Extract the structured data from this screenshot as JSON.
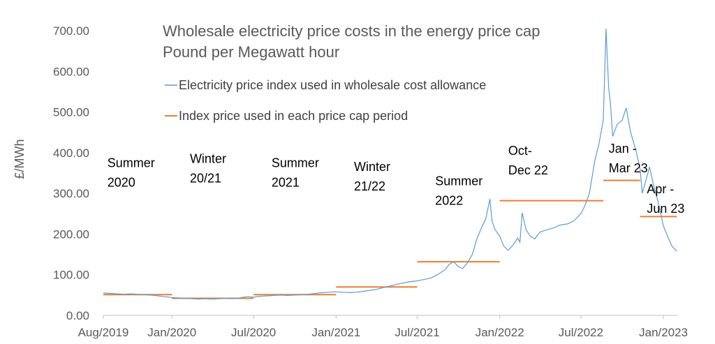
{
  "chart_data": {
    "type": "line",
    "title": "Wholesale electricity price costs in the energy price cap",
    "subtitle": "Pound per Megawatt hour",
    "ylabel": "£/MWh",
    "xlabel": "",
    "ylim": [
      0,
      700
    ],
    "xlim": [
      "2019-08-01",
      "2023-02-01"
    ],
    "grid": false,
    "legend_position": "top-left",
    "y_ticks": [
      "0.00",
      "100.00",
      "200.00",
      "300.00",
      "400.00",
      "500.00",
      "600.00",
      "700.00"
    ],
    "x_ticks": [
      {
        "date": "2019-08-01",
        "label": "Aug/2019"
      },
      {
        "date": "2020-01-01",
        "label": "Jan/2020"
      },
      {
        "date": "2020-07-01",
        "label": "Jul/2020"
      },
      {
        "date": "2021-01-01",
        "label": "Jan/2021"
      },
      {
        "date": "2021-07-01",
        "label": "Jul/2021"
      },
      {
        "date": "2022-01-01",
        "label": "Jan/2022"
      },
      {
        "date": "2022-07-01",
        "label": "Jul/2022"
      },
      {
        "date": "2023-01-01",
        "label": "Jan/2023"
      }
    ],
    "series": [
      {
        "name": "Electricity price index used in wholesale cost allowance",
        "kind": "line",
        "color": "#5b9bd5",
        "points": [
          [
            "2019-08-01",
            55
          ],
          [
            "2019-08-15",
            54
          ],
          [
            "2019-09-01",
            53
          ],
          [
            "2019-09-15",
            52
          ],
          [
            "2019-10-01",
            53
          ],
          [
            "2019-10-15",
            52
          ],
          [
            "2019-11-01",
            51
          ],
          [
            "2019-11-15",
            50
          ],
          [
            "2019-12-01",
            48
          ],
          [
            "2019-12-15",
            46
          ],
          [
            "2020-01-01",
            44
          ],
          [
            "2020-01-15",
            43
          ],
          [
            "2020-02-01",
            42
          ],
          [
            "2020-02-15",
            41
          ],
          [
            "2020-03-01",
            40
          ],
          [
            "2020-03-15",
            41
          ],
          [
            "2020-04-01",
            40
          ],
          [
            "2020-04-15",
            41
          ],
          [
            "2020-05-01",
            42
          ],
          [
            "2020-05-15",
            41
          ],
          [
            "2020-06-01",
            43
          ],
          [
            "2020-06-15",
            46
          ],
          [
            "2020-07-01",
            45
          ],
          [
            "2020-07-15",
            47
          ],
          [
            "2020-08-01",
            48
          ],
          [
            "2020-08-15",
            49
          ],
          [
            "2020-09-01",
            50
          ],
          [
            "2020-09-15",
            49
          ],
          [
            "2020-10-01",
            50
          ],
          [
            "2020-10-15",
            51
          ],
          [
            "2020-11-01",
            52
          ],
          [
            "2020-11-15",
            54
          ],
          [
            "2020-12-01",
            56
          ],
          [
            "2020-12-15",
            57
          ],
          [
            "2021-01-01",
            58
          ],
          [
            "2021-01-15",
            57
          ],
          [
            "2021-02-01",
            56
          ],
          [
            "2021-02-15",
            57
          ],
          [
            "2021-03-01",
            59
          ],
          [
            "2021-03-15",
            61
          ],
          [
            "2021-04-01",
            64
          ],
          [
            "2021-04-15",
            68
          ],
          [
            "2021-05-01",
            72
          ],
          [
            "2021-05-15",
            76
          ],
          [
            "2021-06-01",
            80
          ],
          [
            "2021-06-15",
            83
          ],
          [
            "2021-07-01",
            85
          ],
          [
            "2021-07-15",
            88
          ],
          [
            "2021-08-01",
            92
          ],
          [
            "2021-08-15",
            100
          ],
          [
            "2021-09-01",
            112
          ],
          [
            "2021-09-10",
            125
          ],
          [
            "2021-09-20",
            132
          ],
          [
            "2021-10-01",
            120
          ],
          [
            "2021-10-10",
            115
          ],
          [
            "2021-10-20",
            128
          ],
          [
            "2021-11-01",
            150
          ],
          [
            "2021-11-10",
            185
          ],
          [
            "2021-11-20",
            212
          ],
          [
            "2021-12-01",
            238
          ],
          [
            "2021-12-10",
            286
          ],
          [
            "2021-12-15",
            230
          ],
          [
            "2021-12-22",
            210
          ],
          [
            "2022-01-01",
            195
          ],
          [
            "2022-01-10",
            170
          ],
          [
            "2022-01-20",
            160
          ],
          [
            "2022-02-01",
            175
          ],
          [
            "2022-02-10",
            190
          ],
          [
            "2022-02-15",
            180
          ],
          [
            "2022-02-20",
            252
          ],
          [
            "2022-03-01",
            210
          ],
          [
            "2022-03-10",
            195
          ],
          [
            "2022-03-20",
            188
          ],
          [
            "2022-04-01",
            205
          ],
          [
            "2022-04-15",
            210
          ],
          [
            "2022-05-01",
            215
          ],
          [
            "2022-05-15",
            222
          ],
          [
            "2022-06-01",
            225
          ],
          [
            "2022-06-15",
            232
          ],
          [
            "2022-07-01",
            250
          ],
          [
            "2022-07-10",
            270
          ],
          [
            "2022-07-20",
            300
          ],
          [
            "2022-08-01",
            380
          ],
          [
            "2022-08-10",
            420
          ],
          [
            "2022-08-20",
            480
          ],
          [
            "2022-08-26",
            705
          ],
          [
            "2022-09-01",
            560
          ],
          [
            "2022-09-05",
            520
          ],
          [
            "2022-09-10",
            440
          ],
          [
            "2022-09-20",
            470
          ],
          [
            "2022-10-01",
            480
          ],
          [
            "2022-10-10",
            510
          ],
          [
            "2022-10-20",
            450
          ],
          [
            "2022-11-01",
            405
          ],
          [
            "2022-11-10",
            360
          ],
          [
            "2022-11-15",
            300
          ],
          [
            "2022-11-25",
            340
          ],
          [
            "2022-12-01",
            365
          ],
          [
            "2022-12-10",
            320
          ],
          [
            "2022-12-20",
            280
          ],
          [
            "2023-01-01",
            220
          ],
          [
            "2023-01-10",
            195
          ],
          [
            "2023-01-20",
            170
          ],
          [
            "2023-01-31",
            158
          ]
        ]
      },
      {
        "name": "Index price used in each price cap period",
        "kind": "step",
        "color": "#ed7d31",
        "segments": [
          {
            "start": "2019-08-01",
            "end": "2020-01-01",
            "value": 51,
            "label_lines": [
              "Summer",
              "2020"
            ],
            "label_anchor": "2019-08-10",
            "label_y": 365
          },
          {
            "start": "2020-01-01",
            "end": "2020-07-01",
            "value": 42,
            "label_lines": [
              "Winter",
              "20/21"
            ],
            "label_anchor": "2020-02-10",
            "label_y": 375
          },
          {
            "start": "2020-07-01",
            "end": "2021-01-01",
            "value": 51,
            "label_lines": [
              "Summer",
              "2021"
            ],
            "label_anchor": "2020-08-10",
            "label_y": 365
          },
          {
            "start": "2021-01-01",
            "end": "2021-07-01",
            "value": 70,
            "label_lines": [
              "Winter",
              "21/22"
            ],
            "label_anchor": "2021-02-10",
            "label_y": 355
          },
          {
            "start": "2021-07-01",
            "end": "2022-01-01",
            "value": 132,
            "label_lines": [
              "Summer",
              "2022"
            ],
            "label_anchor": "2021-08-10",
            "label_y": 320
          },
          {
            "start": "2022-01-01",
            "end": "2022-08-20",
            "value": 282,
            "label_lines": [
              "Oct-",
              "Dec 22"
            ],
            "label_anchor": "2022-01-20",
            "label_y": 395
          },
          {
            "start": "2022-08-20",
            "end": "2022-11-10",
            "value": 332,
            "label_lines": [
              "Jan -",
              "Mar 23"
            ],
            "label_anchor": "2022-09-01",
            "label_y": 400
          },
          {
            "start": "2022-11-10",
            "end": "2023-01-31",
            "value": 243,
            "label_lines": [
              "Apr -",
              "Jun 23"
            ],
            "label_anchor": "2022-11-25",
            "label_y": 300
          }
        ]
      }
    ]
  }
}
